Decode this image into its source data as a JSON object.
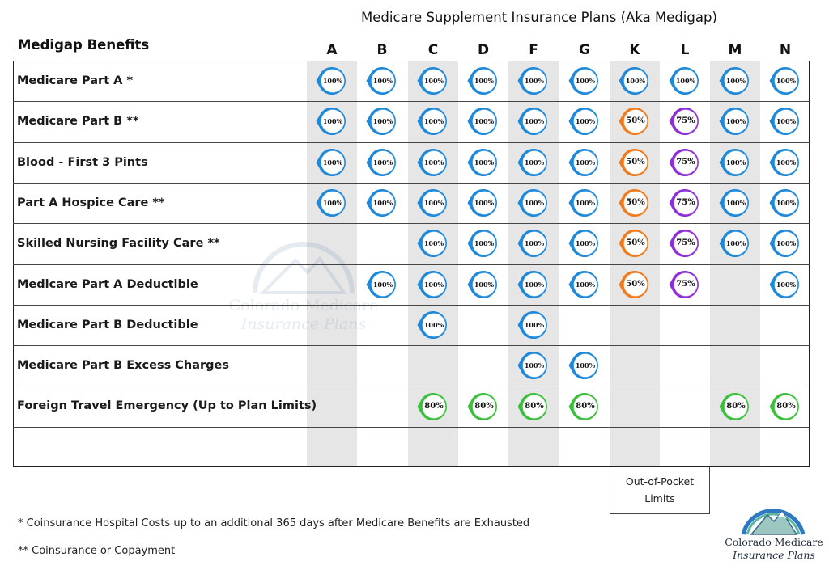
{
  "title": "Medicare Supplement Insurance Plans (Aka Medigap)",
  "benefits_header": "Medigap Benefits",
  "colors": {
    "100%": "#1e88d9",
    "50%": "#f07a1c",
    "75%": "#8e2fd6",
    "80%": "#3cbf3c"
  },
  "chart_data": {
    "type": "table",
    "title": "Medicare Supplement Insurance Plans (Aka Medigap)",
    "plans": [
      "A",
      "B",
      "C",
      "D",
      "F",
      "G",
      "K",
      "L",
      "M",
      "N"
    ],
    "rows": [
      {
        "benefit": "Medicare Part A *",
        "values": [
          "100%",
          "100%",
          "100%",
          "100%",
          "100%",
          "100%",
          "100%",
          "100%",
          "100%",
          "100%"
        ]
      },
      {
        "benefit": "Medicare Part B **",
        "values": [
          "100%",
          "100%",
          "100%",
          "100%",
          "100%",
          "100%",
          "50%",
          "75%",
          "100%",
          "100%"
        ]
      },
      {
        "benefit": "Blood - First 3 Pints",
        "values": [
          "100%",
          "100%",
          "100%",
          "100%",
          "100%",
          "100%",
          "50%",
          "75%",
          "100%",
          "100%"
        ]
      },
      {
        "benefit": "Part A Hospice Care **",
        "values": [
          "100%",
          "100%",
          "100%",
          "100%",
          "100%",
          "100%",
          "50%",
          "75%",
          "100%",
          "100%"
        ]
      },
      {
        "benefit": "Skilled Nursing Facility Care **",
        "values": [
          "",
          "",
          "100%",
          "100%",
          "100%",
          "100%",
          "50%",
          "75%",
          "100%",
          "100%"
        ]
      },
      {
        "benefit": "Medicare Part A Deductible",
        "values": [
          "",
          "100%",
          "100%",
          "100%",
          "100%",
          "100%",
          "50%",
          "75%",
          "",
          "100%"
        ]
      },
      {
        "benefit": "Medicare Part B Deductible",
        "values": [
          "",
          "",
          "100%",
          "",
          "100%",
          "",
          "",
          "",
          "",
          ""
        ]
      },
      {
        "benefit": "Medicare Part B Excess Charges",
        "values": [
          "",
          "",
          "",
          "",
          "100%",
          "100%",
          "",
          "",
          "",
          ""
        ]
      },
      {
        "benefit": "Foreign Travel Emergency (Up to Plan Limits)",
        "values": [
          "",
          "",
          "80%",
          "80%",
          "80%",
          "80%",
          "",
          "",
          "80%",
          "80%"
        ]
      },
      {
        "benefit": "",
        "values": [
          "",
          "",
          "",
          "",
          "",
          "",
          "",
          "",
          "",
          ""
        ]
      }
    ]
  },
  "out_of_pocket": {
    "line1": "Out-of-Pocket",
    "line2": "Limits"
  },
  "footnotes": [
    "* Coinsurance Hospital Costs up to an additional 365 days after Medicare Benefits are Exhausted",
    "** Coinsurance or Copayment"
  ],
  "logo": {
    "name": "Colorado Medicare",
    "tagline": "Insurance Plans",
    "icon": "mountain-logo-icon"
  }
}
